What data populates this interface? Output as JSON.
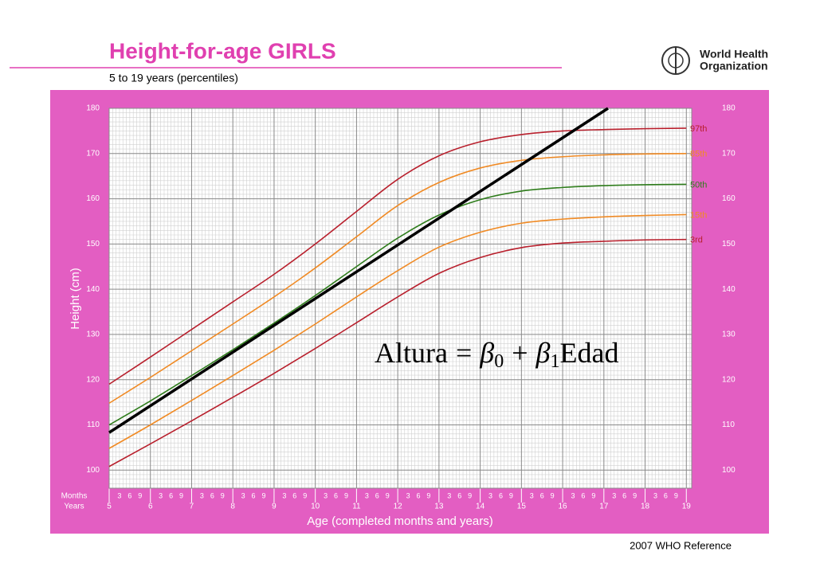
{
  "chart_data": {
    "type": "line",
    "title": "Height-for-age  GIRLS",
    "subtitle": "5 to 19 years (percentiles)",
    "logo_text": [
      "World Health",
      "Organization"
    ],
    "source": "2007 WHO Reference",
    "x_label": "Age (completed months and years)",
    "y_label": "Height (cm)",
    "row_labels": [
      "Months",
      "Years"
    ],
    "month_ticks": [
      3,
      6,
      9
    ],
    "x": [
      5,
      6,
      7,
      8,
      9,
      10,
      11,
      12,
      13,
      14,
      15,
      16,
      17,
      18,
      19
    ],
    "xlim": [
      5,
      19.13
    ],
    "xticks": [
      5,
      6,
      7,
      8,
      9,
      10,
      11,
      12,
      13,
      14,
      15,
      16,
      17,
      18,
      19
    ],
    "ylim": [
      96,
      180
    ],
    "yticks": [
      100,
      110,
      120,
      130,
      140,
      150,
      160,
      170,
      180
    ],
    "grid": true,
    "series": [
      {
        "name": "97th",
        "color": "#b81f2c",
        "values": [
          119.0,
          125.0,
          131.1,
          137.2,
          143.3,
          150.0,
          157.2,
          164.3,
          169.5,
          172.6,
          174.2,
          175.0,
          175.3,
          175.5,
          175.6
        ]
      },
      {
        "name": "85th",
        "color": "#f08a24",
        "values": [
          114.8,
          120.5,
          126.4,
          132.3,
          138.3,
          144.7,
          151.6,
          158.5,
          163.6,
          166.8,
          168.5,
          169.3,
          169.7,
          169.9,
          170.0
        ]
      },
      {
        "name": "50th",
        "color": "#2f7d1c",
        "values": [
          110.0,
          115.3,
          120.9,
          126.6,
          132.5,
          138.6,
          145.0,
          151.3,
          156.4,
          159.8,
          161.7,
          162.5,
          162.9,
          163.1,
          163.2
        ]
      },
      {
        "name": "15th",
        "color": "#f08a24",
        "values": [
          104.8,
          110.0,
          115.4,
          120.9,
          126.5,
          132.3,
          138.3,
          144.1,
          149.3,
          152.6,
          154.6,
          155.5,
          156.0,
          156.3,
          156.5
        ]
      },
      {
        "name": "3rd",
        "color": "#b81f2c",
        "values": [
          100.8,
          105.8,
          110.9,
          116.1,
          121.4,
          126.9,
          132.6,
          138.3,
          143.5,
          147.0,
          149.2,
          150.2,
          150.6,
          150.9,
          151.0
        ]
      }
    ],
    "regression": {
      "color": "#000000",
      "x": [
        5,
        17.1
      ],
      "values": [
        108.3,
        180
      ]
    },
    "annotation": [
      "Altura",
      "=",
      "β",
      "0",
      "+",
      "β",
      "1",
      "Edad"
    ]
  }
}
